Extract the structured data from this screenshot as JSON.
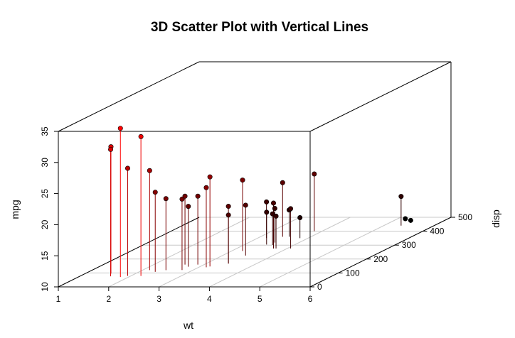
{
  "chart_data": {
    "type": "scatter",
    "title": "3D Scatter Plot with Vertical Lines",
    "xlabel": "wt",
    "ylabel": "disp",
    "zlabel": "mpg",
    "xlim": [
      1,
      6
    ],
    "ylim": [
      0,
      500
    ],
    "zlim": [
      10,
      35
    ],
    "x_ticks": [
      "1",
      "2",
      "3",
      "4",
      "5",
      "6"
    ],
    "y_ticks": [
      "0",
      "100",
      "200",
      "300",
      "400",
      "500"
    ],
    "z_ticks": [
      "10",
      "15",
      "20",
      "25",
      "30",
      "35"
    ],
    "grid": true,
    "vertical_lines": true,
    "color_low": "#ff0000",
    "color_high": "#000000",
    "points": [
      {
        "x": 2.62,
        "y": 160.0,
        "z": 21.0
      },
      {
        "x": 2.875,
        "y": 160.0,
        "z": 21.0
      },
      {
        "x": 2.32,
        "y": 108.0,
        "z": 22.8
      },
      {
        "x": 3.215,
        "y": 258.0,
        "z": 21.4
      },
      {
        "x": 3.44,
        "y": 360.0,
        "z": 18.7
      },
      {
        "x": 3.46,
        "y": 225.0,
        "z": 18.1
      },
      {
        "x": 3.57,
        "y": 360.0,
        "z": 14.3
      },
      {
        "x": 3.19,
        "y": 146.7,
        "z": 24.4
      },
      {
        "x": 3.15,
        "y": 140.8,
        "z": 22.8
      },
      {
        "x": 3.44,
        "y": 167.6,
        "z": 19.2
      },
      {
        "x": 3.44,
        "y": 167.6,
        "z": 17.8
      },
      {
        "x": 4.07,
        "y": 275.8,
        "z": 16.4
      },
      {
        "x": 3.73,
        "y": 275.8,
        "z": 17.3
      },
      {
        "x": 3.78,
        "y": 275.8,
        "z": 15.2
      },
      {
        "x": 5.25,
        "y": 472.0,
        "z": 10.4
      },
      {
        "x": 5.424,
        "y": 460.0,
        "z": 10.4
      },
      {
        "x": 5.345,
        "y": 440.0,
        "z": 14.7
      },
      {
        "x": 2.2,
        "y": 78.7,
        "z": 32.4
      },
      {
        "x": 1.615,
        "y": 75.7,
        "z": 30.4
      },
      {
        "x": 1.835,
        "y": 71.1,
        "z": 33.9
      },
      {
        "x": 2.465,
        "y": 120.1,
        "z": 21.5
      },
      {
        "x": 3.52,
        "y": 318.0,
        "z": 15.5
      },
      {
        "x": 3.435,
        "y": 304.0,
        "z": 15.2
      },
      {
        "x": 3.84,
        "y": 350.0,
        "z": 13.3
      },
      {
        "x": 3.845,
        "y": 400.0,
        "z": 19.2
      },
      {
        "x": 1.935,
        "y": 79.0,
        "z": 27.3
      },
      {
        "x": 2.14,
        "y": 120.3,
        "z": 26.0
      },
      {
        "x": 1.513,
        "y": 95.1,
        "z": 30.4
      },
      {
        "x": 3.17,
        "y": 351.0,
        "z": 15.8
      },
      {
        "x": 2.77,
        "y": 145.0,
        "z": 19.7
      },
      {
        "x": 3.57,
        "y": 301.0,
        "z": 15.0
      },
      {
        "x": 2.78,
        "y": 121.0,
        "z": 21.4
      }
    ]
  }
}
